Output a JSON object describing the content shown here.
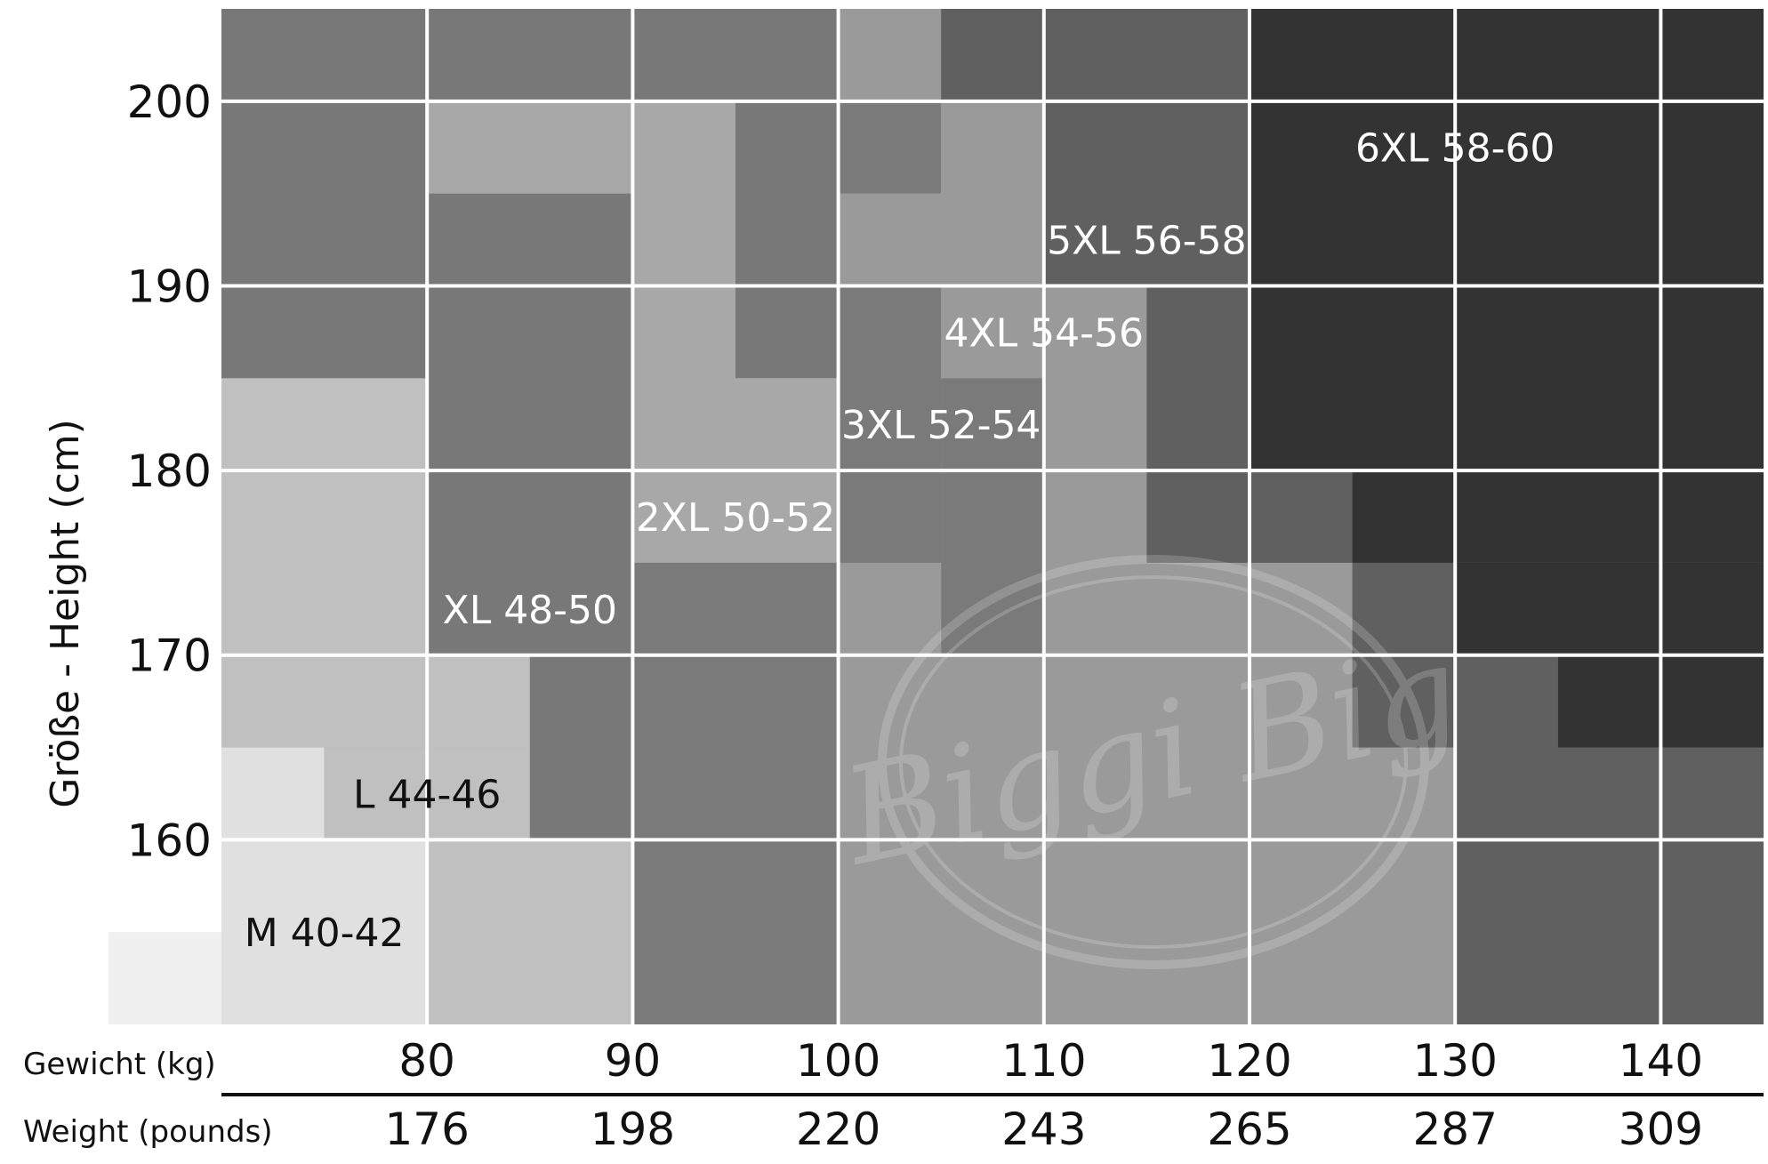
{
  "chart_data": {
    "type": "heatmap",
    "title": "",
    "ylabel": "Größe - Height (cm)",
    "xlabel_kg": "Gewicht (kg)",
    "xlabel_lb": "Weight (pounds)",
    "xlim": [
      70,
      145
    ],
    "ylim": [
      150,
      205
    ],
    "x_ticks_kg": [
      "80",
      "90",
      "100",
      "110",
      "120",
      "130",
      "140"
    ],
    "x_ticks_lb": [
      "176",
      "198",
      "220",
      "243",
      "265",
      "287",
      "309"
    ],
    "y_ticks": [
      "160",
      "170",
      "180",
      "190",
      "200"
    ],
    "watermark": "Biggi Big",
    "sizes": [
      {
        "label": "M 40-42",
        "color": "#e0e0e0",
        "text_color": "#111111",
        "label_at": [
          75,
          155
        ]
      },
      {
        "label": "L 44-46",
        "color": "#c0c0c0",
        "text_color": "#111111",
        "label_at": [
          80,
          162.5
        ]
      },
      {
        "label": "XL 48-50",
        "color": "#787878",
        "text_color": "#ffffff",
        "label_at": [
          85,
          172.5
        ]
      },
      {
        "label": "2XL 50-52",
        "color": "#a8a8a8",
        "text_color": "#ffffff",
        "label_at": [
          95,
          177.5
        ]
      },
      {
        "label": "3XL 52-54",
        "color": "#7a7a7a",
        "text_color": "#ffffff",
        "label_at": [
          105,
          182.5
        ]
      },
      {
        "label": "4XL 54-56",
        "color": "#9a9a9a",
        "text_color": "#ffffff",
        "label_at": [
          110,
          187.5
        ]
      },
      {
        "label": "5XL 56-58",
        "color": "#606060",
        "text_color": "#ffffff",
        "label_at": [
          115,
          192.5
        ]
      },
      {
        "label": "6XL 58-60",
        "color": "#333333",
        "text_color": "#ffffff",
        "label_at": [
          130,
          197.5
        ]
      }
    ],
    "cells": [
      {
        "size": "M 40-42",
        "x": [
          64.5,
          70
        ],
        "y": [
          150,
          155
        ]
      },
      {
        "size": "M 40-42",
        "x": [
          70,
          80
        ],
        "y": [
          150,
          160
        ]
      },
      {
        "size": "M 40-42",
        "x": [
          70,
          75
        ],
        "y": [
          160,
          165
        ]
      },
      {
        "size": "L 44-46",
        "x": [
          80,
          90
        ],
        "y": [
          150,
          160
        ]
      },
      {
        "size": "L 44-46",
        "x": [
          75,
          85
        ],
        "y": [
          160,
          165
        ]
      },
      {
        "size": "L 44-46",
        "x": [
          70,
          85
        ],
        "y": [
          165,
          170
        ]
      },
      {
        "size": "L 44-46",
        "x": [
          70,
          80
        ],
        "y": [
          170,
          185
        ]
      },
      {
        "size": "XL 48-50",
        "x": [
          85,
          90
        ],
        "y": [
          160,
          170
        ]
      },
      {
        "size": "XL 48-50",
        "x": [
          80,
          90
        ],
        "y": [
          170,
          180
        ]
      },
      {
        "size": "XL 48-50",
        "x": [
          80,
          90
        ],
        "y": [
          180,
          195
        ]
      },
      {
        "size": "XL 48-50",
        "x": [
          70,
          80
        ],
        "y": [
          185,
          200
        ]
      },
      {
        "size": "XL 48-50",
        "x": [
          95,
          100
        ],
        "y": [
          185,
          200
        ]
      },
      {
        "size": "2XL 50-52",
        "x": [
          80,
          90
        ],
        "y": [
          195,
          200
        ]
      },
      {
        "size": "2XL 50-52",
        "x": [
          90,
          95
        ],
        "y": [
          175,
          200
        ]
      },
      {
        "size": "2XL 50-52",
        "x": [
          95,
          100
        ],
        "y": [
          175,
          185
        ]
      },
      {
        "size": "3XL 52-54",
        "x": [
          90,
          100
        ],
        "y": [
          150,
          175
        ]
      },
      {
        "size": "3XL 52-54",
        "x": [
          100,
          105
        ],
        "y": [
          175,
          190
        ]
      },
      {
        "size": "3XL 52-54",
        "x": [
          105,
          110
        ],
        "y": [
          170,
          185
        ]
      },
      {
        "size": "3XL 52-54",
        "x": [
          100,
          105
        ],
        "y": [
          195,
          200
        ]
      },
      {
        "size": "XL 48-50",
        "x": [
          70,
          100
        ],
        "y": [
          200,
          205
        ]
      },
      {
        "size": "4XL 54-56",
        "x": [
          100,
          105
        ],
        "y": [
          150,
          175
        ]
      },
      {
        "size": "4XL 54-56",
        "x": [
          105,
          110
        ],
        "y": [
          150,
          170
        ]
      },
      {
        "size": "4XL 54-56",
        "x": [
          110,
          115
        ],
        "y": [
          150,
          175
        ]
      },
      {
        "size": "4XL 54-56",
        "x": [
          115,
          125
        ],
        "y": [
          150,
          175
        ]
      },
      {
        "size": "4XL 54-56",
        "x": [
          110,
          115
        ],
        "y": [
          175,
          190
        ]
      },
      {
        "size": "4XL 54-56",
        "x": [
          105,
          110
        ],
        "y": [
          185,
          200
        ]
      },
      {
        "size": "4XL 54-56",
        "x": [
          100,
          105
        ],
        "y": [
          190,
          195
        ]
      },
      {
        "size": "4XL 54-56",
        "x": [
          100,
          105
        ],
        "y": [
          200,
          205
        ]
      },
      {
        "size": "5XL 56-58",
        "x": [
          105,
          120
        ],
        "y": [
          200,
          205
        ]
      },
      {
        "size": "5XL 56-58",
        "x": [
          110,
          120
        ],
        "y": [
          190,
          200
        ]
      },
      {
        "size": "5XL 56-58",
        "x": [
          115,
          120
        ],
        "y": [
          175,
          190
        ]
      },
      {
        "size": "5XL 56-58",
        "x": [
          120,
          125
        ],
        "y": [
          175,
          180
        ]
      },
      {
        "size": "5XL 56-58",
        "x": [
          125,
          130
        ],
        "y": [
          165,
          175
        ]
      },
      {
        "size": "5XL 56-58",
        "x": [
          130,
          145
        ],
        "y": [
          150,
          165
        ]
      },
      {
        "size": "5XL 56-58",
        "x": [
          130,
          135
        ],
        "y": [
          165,
          170
        ]
      },
      {
        "size": "6XL 58-60",
        "x": [
          120,
          145
        ],
        "y": [
          180,
          205
        ]
      },
      {
        "size": "6XL 58-60",
        "x": [
          125,
          145
        ],
        "y": [
          175,
          180
        ]
      },
      {
        "size": "6XL 58-60",
        "x": [
          130,
          145
        ],
        "y": [
          170,
          175
        ]
      },
      {
        "size": "6XL 58-60",
        "x": [
          135,
          145
        ],
        "y": [
          165,
          170
        ]
      }
    ]
  }
}
